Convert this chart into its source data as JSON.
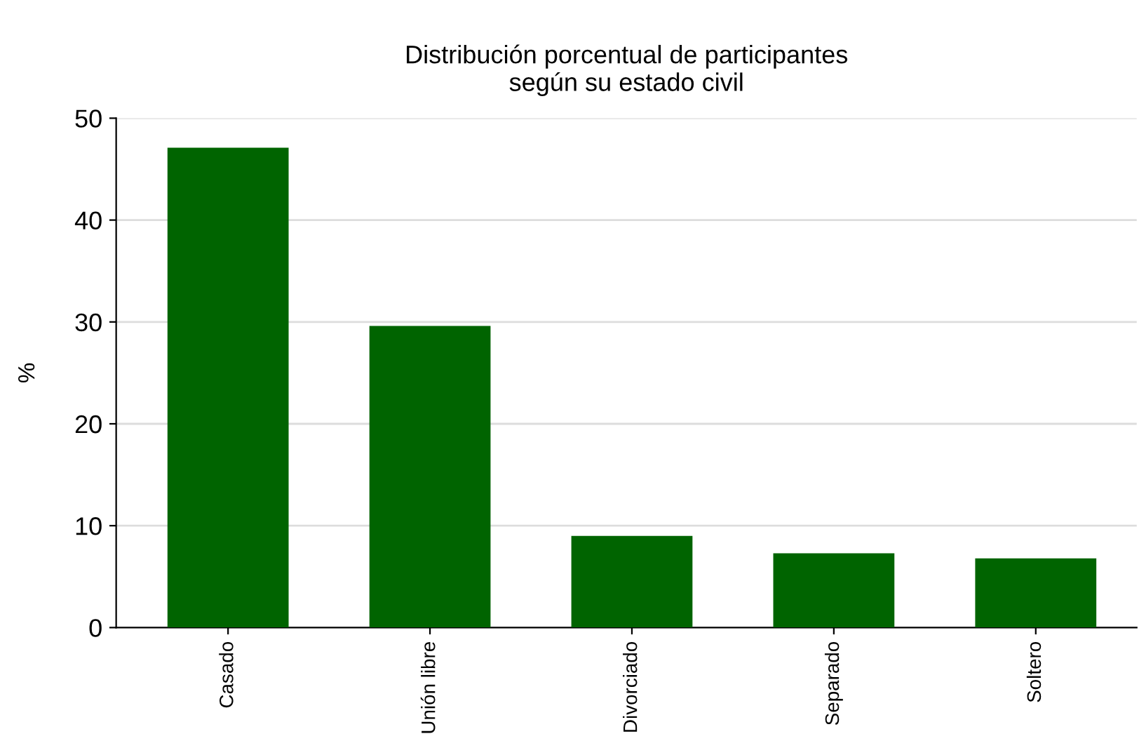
{
  "chart_data": {
    "type": "bar",
    "title": "Distribución porcentual de participantes\nsegún su estado civil",
    "ylabel": "%",
    "categories": [
      "Casado",
      "Unión libre",
      "Divorciado",
      "Separado",
      "Soltero"
    ],
    "values": [
      47.1,
      29.6,
      9.0,
      7.3,
      6.8
    ],
    "color": "#006400",
    "ylim": [
      0,
      50
    ],
    "yticks": [
      0,
      10,
      20,
      30,
      40,
      50
    ],
    "grid": "y",
    "legend": false
  }
}
